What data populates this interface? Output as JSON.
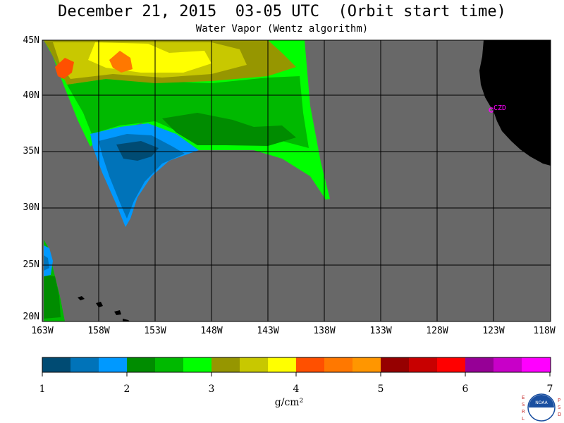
{
  "title": "December 21, 2015  03-05 UTC  (Orbit start time)",
  "subtitle": "Water Vapor (Wentz algorithm)",
  "map": {
    "lat_labels": [
      "45N",
      "40N",
      "35N",
      "30N",
      "25N",
      "20N"
    ],
    "lon_labels": [
      "163W",
      "158W",
      "153W",
      "148W",
      "143W",
      "138W",
      "133W",
      "128W",
      "123W",
      "118W"
    ],
    "station_label": "CZD",
    "colors": {
      "no_data": "#686868",
      "land": "#000000",
      "station": "#ff00ff"
    }
  },
  "colorbar": {
    "tick_labels": [
      "1",
      "2",
      "3",
      "4",
      "5",
      "6",
      "7"
    ],
    "unit": "g/cm²",
    "colors": [
      "#004b73",
      "#0073b9",
      "#0099ff",
      "#008c00",
      "#00b900",
      "#00ff00",
      "#969600",
      "#c8c800",
      "#ffff00",
      "#ff5000",
      "#ff7800",
      "#ff9600",
      "#960000",
      "#c80000",
      "#ff0000",
      "#960096",
      "#c800c8",
      "#ff00ff"
    ]
  },
  "logo": {
    "left_letters": [
      "E",
      "S",
      "R",
      "L"
    ],
    "right_letters": [
      "P",
      "S",
      "D"
    ],
    "center_text": "NOAA"
  }
}
